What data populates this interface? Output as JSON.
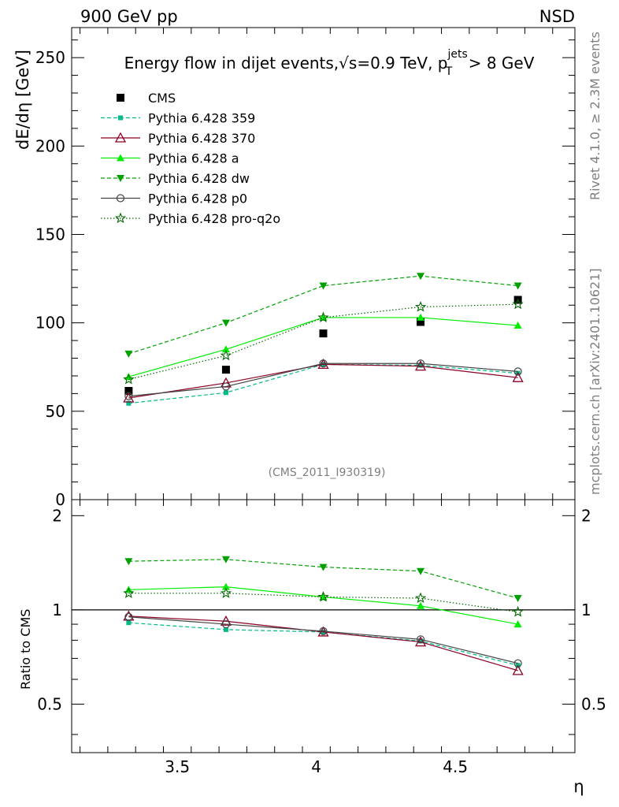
{
  "header": {
    "left": "900 GeV pp",
    "right": "NSD"
  },
  "side": {
    "rivet": "Rivet 4.1.0, ≥ 2.3M events",
    "mcplots": "mcplots.cern.ch [arXiv:2401.10621]"
  },
  "chart_data": [
    {
      "type": "line",
      "panel": "main",
      "title": "Energy flow in dijet events, √s=0.9 TeV, p_T^jets > 8 GeV",
      "title_parts": {
        "lead": "Energy flow in dijet events,",
        "sqrt": "√",
        "s_eq": "s=0.9 TeV, p",
        "sub": "T",
        "sup": "jets",
        "tail": " > 8 GeV"
      },
      "ylabel": "dE/dη [GeV]",
      "xlabel": "η",
      "xlim": [
        3.12,
        4.93
      ],
      "ylim": [
        0,
        267
      ],
      "yticks": [
        0,
        50,
        100,
        150,
        200,
        250
      ],
      "xticks": [
        3.5,
        4,
        4.5
      ],
      "analysis_id": "(CMS_2011_I930319)",
      "x": [
        3.325,
        3.675,
        4.025,
        4.375,
        4.725
      ],
      "series": [
        {
          "name": "CMS",
          "values": [
            61.5,
            73.5,
            94,
            100.5,
            113
          ],
          "color": "#000000",
          "marker": "square",
          "line": "none"
        },
        {
          "name": "Pythia 6.428 359",
          "values": [
            54.5,
            60.5,
            76.5,
            76,
            71.5
          ],
          "color": "#00bb88",
          "marker": "smallsquare",
          "line": "dashed"
        },
        {
          "name": "Pythia 6.428 370",
          "values": [
            57.5,
            66,
            76.5,
            75.5,
            69
          ],
          "color": "#8b0025",
          "marker": "triangle-open",
          "line": "solid"
        },
        {
          "name": "Pythia 6.428 a",
          "values": [
            69.5,
            85,
            103,
            103,
            98.5
          ],
          "color": "#00ee00",
          "marker": "triangle",
          "line": "solid"
        },
        {
          "name": "Pythia 6.428 dw",
          "values": [
            82.5,
            100,
            121,
            126.5,
            121
          ],
          "color": "#00a000",
          "marker": "triangle-down",
          "line": "dashed"
        },
        {
          "name": "Pythia 6.428 p0",
          "values": [
            58.5,
            64,
            77,
            77,
            72.5
          ],
          "color": "#444444",
          "marker": "circle-open",
          "line": "solid"
        },
        {
          "name": "Pythia 6.428 pro-q2o",
          "values": [
            68,
            81.5,
            103,
            109,
            110.5
          ],
          "color": "#006600",
          "marker": "star",
          "line": "dotted"
        }
      ]
    },
    {
      "type": "line",
      "panel": "ratio",
      "ylabel": "Ratio to CMS",
      "xlabel": "η",
      "xlim": [
        3.12,
        4.93
      ],
      "ylim": [
        0.35,
        2.25
      ],
      "yticks": [
        0.5,
        1,
        2
      ],
      "reference": 1,
      "x": [
        3.325,
        3.675,
        4.025,
        4.375,
        4.725
      ],
      "series": [
        {
          "name": "Pythia 6.428 359",
          "values": [
            0.91,
            0.865,
            0.85,
            0.795,
            0.665
          ],
          "color": "#00bb88",
          "marker": "smallsquare",
          "line": "dashed"
        },
        {
          "name": "Pythia 6.428 370",
          "values": [
            0.955,
            0.92,
            0.85,
            0.79,
            0.64
          ],
          "color": "#8b0025",
          "marker": "triangle-open",
          "line": "solid"
        },
        {
          "name": "Pythia 6.428 a",
          "values": [
            1.16,
            1.185,
            1.1,
            1.03,
            0.9
          ],
          "color": "#00ee00",
          "marker": "triangle",
          "line": "solid"
        },
        {
          "name": "Pythia 6.428 dw",
          "values": [
            1.43,
            1.45,
            1.37,
            1.33,
            1.09
          ],
          "color": "#00a000",
          "marker": "triangle-down",
          "line": "dashed"
        },
        {
          "name": "Pythia 6.428 p0",
          "values": [
            0.95,
            0.9,
            0.855,
            0.805,
            0.675
          ],
          "color": "#444444",
          "marker": "circle-open",
          "line": "solid"
        },
        {
          "name": "Pythia 6.428 pro-q2o",
          "values": [
            1.13,
            1.13,
            1.1,
            1.09,
            0.985
          ],
          "color": "#006600",
          "marker": "star",
          "line": "dotted"
        }
      ]
    }
  ]
}
